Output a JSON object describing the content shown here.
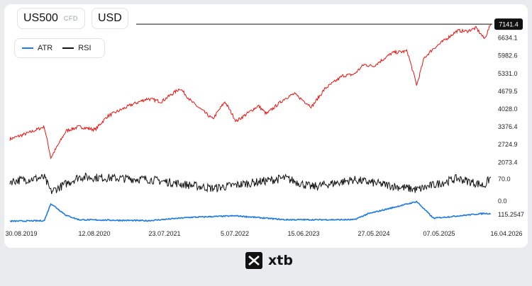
{
  "instrument": {
    "symbol": "US500",
    "type": "CFD",
    "currency": "USD"
  },
  "legend": [
    {
      "name": "ATR",
      "color": "#1f7ae0"
    },
    {
      "name": "RSI",
      "color": "#111111"
    }
  ],
  "colors": {
    "price": "#e8130f",
    "atr": "#1f7ae0",
    "rsi": "#111111"
  },
  "brand": {
    "name": "xtb"
  },
  "chart_data": [
    {
      "type": "line",
      "series": [
        {
          "name": "US500",
          "values": [
            [
              "2019-08-30",
              2925
            ],
            [
              "2019-12-15",
              3190
            ],
            [
              "2020-02-19",
              3385
            ],
            [
              "2020-03-23",
              2240
            ],
            [
              "2020-06-08",
              3230
            ],
            [
              "2020-08-12",
              3380
            ],
            [
              "2020-11-01",
              3270
            ],
            [
              "2021-01-01",
              3760
            ],
            [
              "2021-05-01",
              4180
            ],
            [
              "2021-07-23",
              4410
            ],
            [
              "2021-09-30",
              4300
            ],
            [
              "2022-01-03",
              4790
            ],
            [
              "2022-03-01",
              4300
            ],
            [
              "2022-06-16",
              3660
            ],
            [
              "2022-08-16",
              4300
            ],
            [
              "2022-10-12",
              3580
            ],
            [
              "2023-02-01",
              4150
            ],
            [
              "2023-03-13",
              3850
            ],
            [
              "2023-06-15",
              4420
            ],
            [
              "2023-07-31",
              4590
            ],
            [
              "2023-10-27",
              4110
            ],
            [
              "2024-01-01",
              4770
            ],
            [
              "2024-04-01",
              5250
            ],
            [
              "2024-05-27",
              5300
            ],
            [
              "2024-07-16",
              5660
            ],
            [
              "2024-09-01",
              5600
            ],
            [
              "2024-12-06",
              6090
            ],
            [
              "2025-02-19",
              6150
            ],
            [
              "2025-04-08",
              4900
            ],
            [
              "2025-05-15",
              5900
            ],
            [
              "2025-07-01",
              6250
            ],
            [
              "2025-10-29",
              6900
            ],
            [
              "2025-12-15",
              6880
            ],
            [
              "2026-02-01",
              7000
            ],
            [
              "2026-03-15",
              6600
            ],
            [
              "2026-04-16",
              7141.4
            ]
          ]
        },
        {
          "name": "RSI",
          "values": [
            [
              "2019-08-30",
              55
            ],
            [
              "2020-02-19",
              68
            ],
            [
              "2020-03-23",
              18
            ],
            [
              "2020-08-12",
              70
            ],
            [
              "2021-07-23",
              62
            ],
            [
              "2022-06-16",
              30
            ],
            [
              "2023-06-15",
              66
            ],
            [
              "2023-10-27",
              35
            ],
            [
              "2024-05-27",
              60
            ],
            [
              "2025-04-08",
              25
            ],
            [
              "2025-10-29",
              65
            ],
            [
              "2026-03-15",
              40
            ],
            [
              "2026-04-16",
              70
            ]
          ]
        },
        {
          "name": "ATR",
          "values": [
            [
              "2019-08-30",
              40
            ],
            [
              "2020-02-19",
              45
            ],
            [
              "2020-03-23",
              220
            ],
            [
              "2020-06-08",
              100
            ],
            [
              "2020-08-12",
              55
            ],
            [
              "2021-07-23",
              45
            ],
            [
              "2022-03-01",
              80
            ],
            [
              "2022-10-12",
              95
            ],
            [
              "2023-06-15",
              55
            ],
            [
              "2024-05-27",
              55
            ],
            [
              "2024-08-05",
              115
            ],
            [
              "2025-04-08",
              240
            ],
            [
              "2025-07-01",
              70
            ],
            [
              "2026-03-15",
              120
            ],
            [
              "2026-04-16",
              115.2547
            ]
          ]
        }
      ],
      "x_ticks": [
        "30.08.2019",
        "12.08.2020",
        "23.07.2021",
        "5.07.2022",
        "15.06.2023",
        "27.05.2024",
        "07.05.2025",
        "16.04.2026"
      ],
      "price_ticks": [
        "6634.1",
        "5982.6",
        "5331.0",
        "4679.5",
        "4028.0",
        "3376.4",
        "2724.9",
        "2073.4"
      ],
      "rsi_ticks": [
        "70.0",
        "0.0"
      ],
      "atr_label": "115.2547",
      "last_price_label": "7141.4",
      "y_range_price": [
        1900,
        7300
      ],
      "y_range_rsi": [
        0,
        100
      ],
      "y_range_atr": [
        0,
        260
      ]
    }
  ]
}
